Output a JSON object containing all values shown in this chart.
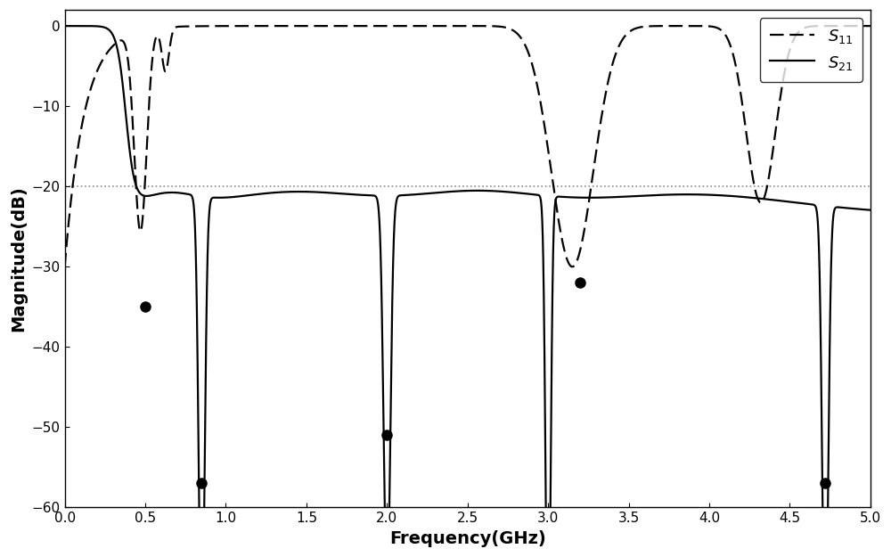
{
  "title": "",
  "xlabel": "Frequency(GHz)",
  "ylabel": "Magnitude(dB)",
  "xlim": [
    0,
    5
  ],
  "ylim": [
    -60,
    2
  ],
  "yticks": [
    0,
    -10,
    -20,
    -30,
    -40,
    -50,
    -60
  ],
  "xticks": [
    0,
    0.5,
    1.0,
    1.5,
    2.0,
    2.5,
    3.0,
    3.5,
    4.0,
    4.5,
    5.0
  ],
  "ref_line_y": -20,
  "background_color": "#ffffff",
  "s11_color": "#000000",
  "s21_color": "#000000",
  "dot_color": "#000000",
  "ref_line_color": "#7f7f7f",
  "s11_label": "$S_{11}$",
  "s21_label": "$S_{21}$"
}
